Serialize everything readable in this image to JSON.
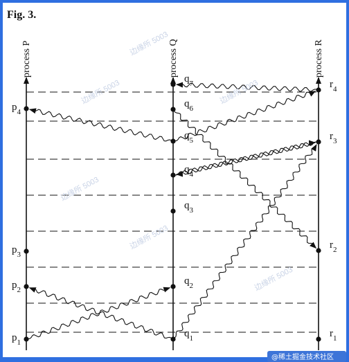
{
  "figure": {
    "caption": "Fig. 3.",
    "processes": [
      {
        "name": "process P",
        "letter": "p"
      },
      {
        "name": "process Q",
        "letter": "q"
      },
      {
        "name": "process R",
        "letter": "r"
      }
    ],
    "events": {
      "P": [
        "1",
        "2",
        "3",
        "4"
      ],
      "Q": [
        "1",
        "2",
        "3",
        "4",
        "5",
        "6",
        "7"
      ],
      "R": [
        "1",
        "2",
        "3",
        "4"
      ]
    },
    "messages": [
      {
        "from": "p1",
        "to": "q2"
      },
      {
        "from": "q1",
        "to": "p2"
      },
      {
        "from": "q1",
        "to": "r3"
      },
      {
        "from": "q5",
        "to": "p4"
      },
      {
        "from": "q4",
        "to": "r3"
      },
      {
        "from": "r3",
        "to": "q4"
      },
      {
        "from": "q6",
        "to": "r2"
      },
      {
        "from": "r4",
        "to": "q7"
      },
      {
        "from": "q5",
        "to": "r4"
      }
    ]
  },
  "watermark": {
    "text": "边缘所 5003",
    "badge": "@稀土掘金技术社区"
  },
  "colors": {
    "frame": "#2f6fe0",
    "paper": "#ffffff",
    "ink": "#111111"
  }
}
